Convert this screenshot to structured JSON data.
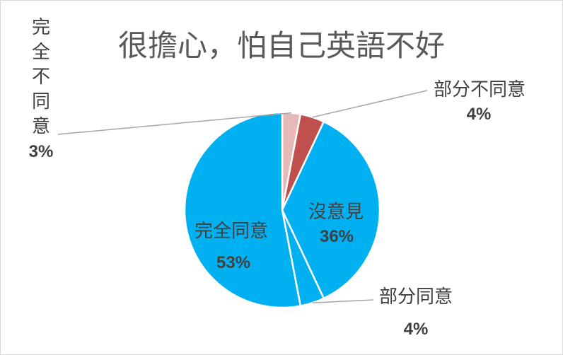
{
  "chart_data": {
    "type": "pie",
    "title": "很擔心，怕自己英語不好",
    "legend": "none",
    "slices": [
      {
        "label": "完全不同意",
        "value": 3,
        "percent_label": "3%",
        "color": "#E6B9B8"
      },
      {
        "label": "部分不同意",
        "value": 4,
        "percent_label": "4%",
        "color": "#C0504D"
      },
      {
        "label": "沒意見",
        "value": 36,
        "percent_label": "36%",
        "color": "#00B0F0"
      },
      {
        "label": "部分同意",
        "value": 4,
        "percent_label": "4%",
        "color": "#00B0F0"
      },
      {
        "label": "完全同意",
        "value": 53,
        "percent_label": "53%",
        "color": "#00B0F0"
      }
    ]
  }
}
